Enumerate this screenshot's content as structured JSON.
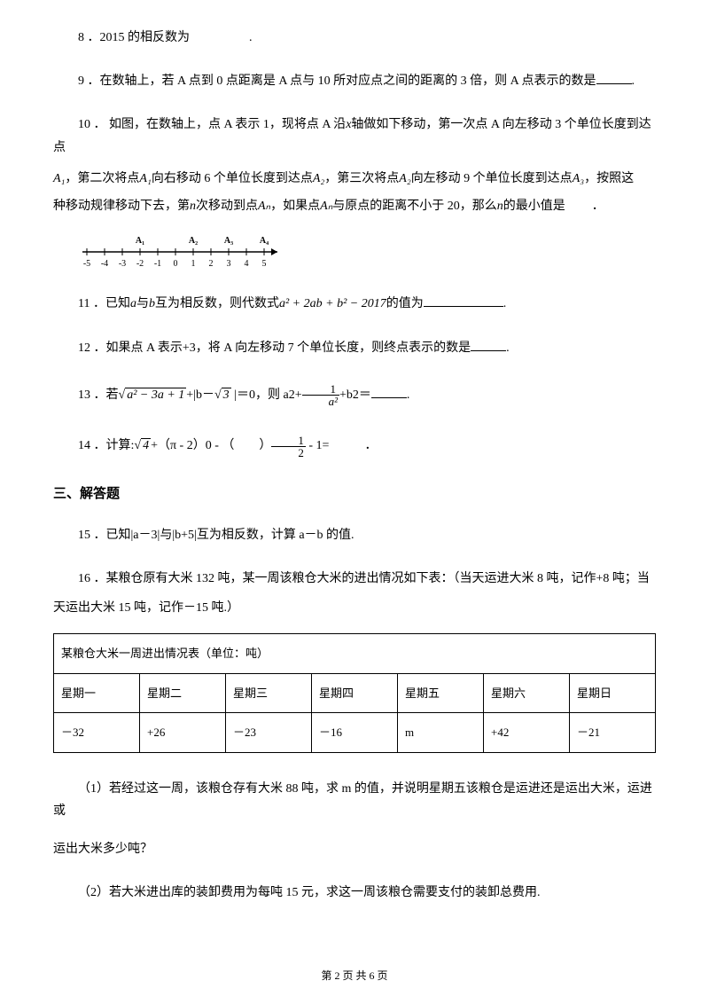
{
  "q8": {
    "num": "8",
    "text": "．2015 的相反数为",
    "end": "."
  },
  "q9": {
    "num": "9",
    "text": "．在数轴上，若 A 点到 0 点距离是 A 点与 10 所对应点之间的距离的 3 倍，则 A 点表示的数是",
    "end": "."
  },
  "q10": {
    "num": "10",
    "line1a": "． 如图，在数轴上，点 A 表示 1，现将点 A 沿",
    "xvar": "x",
    "line1b": "轴做如下移动，第一次点 A 向左移动 3 个单位长度到达点",
    "A1": "A₁",
    "line2a": "，第二次将点",
    "line2b": "向右移动 6 个单位长度到达点",
    "A2": "A₂",
    "line2c": "，第三次将点",
    "line2d": "向左移动 9 个单位长度到达点",
    "A3": "A₃",
    "line2e": "，按照这",
    "line3a": "种移动规律移动下去，第",
    "nvar": "n",
    "line3b": "次移动到点",
    "An": "Aₙ",
    "line3c": "，如果点",
    "line3d": "与原点的距离不小于 20，那么",
    "line3e": "的最小值是",
    "end": "．",
    "numline_labels": [
      "A₁",
      "A₂",
      "A₃",
      "A₄"
    ],
    "numline_ticks": [
      "-5",
      "-4",
      "-3",
      "-2",
      "-1",
      "0",
      "1",
      "2",
      "3",
      "4",
      "5"
    ]
  },
  "q11": {
    "num": "11",
    "text1": "．已知",
    "a": "a",
    "text2": "与",
    "b": "b",
    "text3": "互为相反数，则代数式",
    "expr": "a² + 2ab + b² − 2017",
    "text4": "的值为",
    "end": "."
  },
  "q12": {
    "num": "12",
    "text": "．如果点 A 表示+3，将 A 向左移动 7 个单位长度，则终点表示的数是",
    "end": "."
  },
  "q13": {
    "num": "13",
    "text1": "．若",
    "sqrt1": "a² − 3a + 1",
    "text2": "+|b－",
    "sqrt2": "3",
    "text3": " |＝0，则 a2+",
    "frac_num": "1",
    "frac_den": "a²",
    "text4": "+b2＝",
    "end": "."
  },
  "q14": {
    "num": "14",
    "text1": "．计算:",
    "sqrt": "4",
    "text2": "+（π - 2）0 - （　　）",
    "frac_num": "1",
    "frac_den": "2",
    "text3": " - 1=",
    "end": "．"
  },
  "section3": "三、解答题",
  "q15": {
    "num": "15",
    "text": "．已知|a－3|与|b+5|互为相反数，计算 a－b 的值."
  },
  "q16": {
    "num": "16",
    "text1": "．某粮仓原有大米 132 吨，某一周该粮仓大米的进出情况如下表：（当天运进大米 8  吨，记作+8 吨；当",
    "text2": "天运出大米 15 吨，记作－15 吨.）",
    "table_title": "某粮仓大米一周进出情况表（单位：吨）",
    "headers": [
      "星期一",
      "星期二",
      "星期三",
      "星期四",
      "星期五",
      "星期六",
      "星期日"
    ],
    "values": [
      "－32",
      "+26",
      "－23",
      "－16",
      "m",
      "+42",
      "－21"
    ],
    "sub1a": "（1）若经过这一周，该粮仓存有大米 88 吨，求 m 的值，并说明星期五该粮仓是运进还是运出大米，运进或",
    "sub1b": "运出大米多少吨？",
    "sub2": "（2）若大米进出库的装卸费用为每吨 15 元，求这一周该粮仓需要支付的装卸总费用."
  },
  "footer": "第 2 页 共 6 页",
  "colors": {
    "text": "#000000",
    "bg": "#ffffff",
    "border": "#000000"
  }
}
